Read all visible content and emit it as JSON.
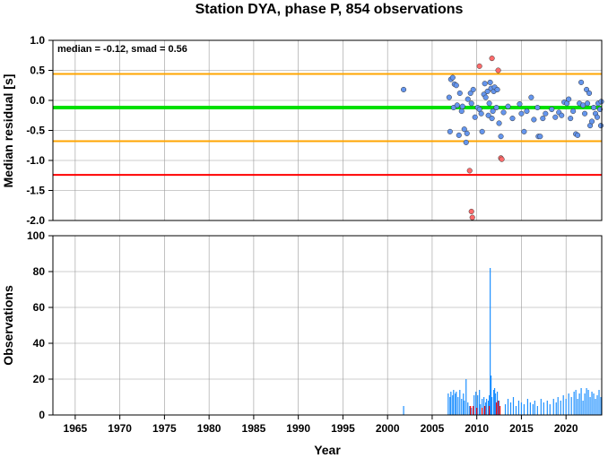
{
  "chart_data": [
    {
      "type": "scatter",
      "title": "Station DYA, phase P, 854 observations",
      "xlabel": "",
      "ylabel": "Median residual [s]",
      "annotation": "median = -0.12, smad = 0.56",
      "xlim": [
        1962.5,
        2024.0
      ],
      "ylim": [
        -2.0,
        1.0
      ],
      "yticks": [
        "1.0",
        "0.5",
        "0.0",
        "-0.5",
        "-1.0",
        "-1.5",
        "-2.0"
      ],
      "grid": true,
      "reference_lines": [
        {
          "value": 0.44,
          "color": "#ffa500"
        },
        {
          "value": -0.12,
          "color": "#00e000"
        },
        {
          "value": -0.68,
          "color": "#ffa500"
        },
        {
          "value": -1.24,
          "color": "#ff0000"
        }
      ],
      "series": [
        {
          "color": "#6495ed",
          "points": [
            [
              2001.8,
              0.18
            ],
            [
              2006.9,
              0.05
            ],
            [
              2007.0,
              -0.52
            ],
            [
              2007.1,
              0.35
            ],
            [
              2007.3,
              0.38
            ],
            [
              2007.4,
              -0.12
            ],
            [
              2007.5,
              0.27
            ],
            [
              2007.7,
              0.25
            ],
            [
              2007.8,
              -0.08
            ],
            [
              2008.0,
              -0.58
            ],
            [
              2008.1,
              0.12
            ],
            [
              2008.3,
              -0.18
            ],
            [
              2008.4,
              -0.1
            ],
            [
              2008.6,
              -0.48
            ],
            [
              2008.8,
              -0.7
            ],
            [
              2008.9,
              -0.55
            ],
            [
              2009.0,
              0.02
            ],
            [
              2009.3,
              0.12
            ],
            [
              2009.4,
              -0.05
            ],
            [
              2009.6,
              0.18
            ],
            [
              2009.8,
              -0.28
            ],
            [
              2010.1,
              -0.12
            ],
            [
              2010.3,
              -0.15
            ],
            [
              2010.5,
              -0.22
            ],
            [
              2010.6,
              -0.52
            ],
            [
              2010.8,
              0.1
            ],
            [
              2010.9,
              0.28
            ],
            [
              2011.0,
              0.05
            ],
            [
              2011.2,
              0.15
            ],
            [
              2011.3,
              -0.25
            ],
            [
              2011.4,
              -0.05
            ],
            [
              2011.5,
              0.3
            ],
            [
              2011.6,
              0.2
            ],
            [
              2011.7,
              -0.3
            ],
            [
              2011.8,
              -0.18
            ],
            [
              2011.9,
              0.15
            ],
            [
              2012.0,
              0.22
            ],
            [
              2012.2,
              -0.12
            ],
            [
              2012.3,
              0.18
            ],
            [
              2012.5,
              -0.38
            ],
            [
              2012.7,
              -0.6
            ],
            [
              2013.0,
              -0.2
            ],
            [
              2013.5,
              -0.1
            ],
            [
              2014.0,
              -0.3
            ],
            [
              2014.8,
              -0.06
            ],
            [
              2015.0,
              -0.22
            ],
            [
              2015.3,
              -0.52
            ],
            [
              2015.6,
              -0.18
            ],
            [
              2016.1,
              0.05
            ],
            [
              2016.4,
              -0.32
            ],
            [
              2016.8,
              -0.12
            ],
            [
              2016.9,
              -0.6
            ],
            [
              2017.1,
              -0.6
            ],
            [
              2017.4,
              -0.3
            ],
            [
              2017.7,
              -0.22
            ],
            [
              2018.4,
              -0.15
            ],
            [
              2018.8,
              -0.28
            ],
            [
              2019.2,
              -0.2
            ],
            [
              2019.5,
              -0.25
            ],
            [
              2019.8,
              -0.03
            ],
            [
              2020.1,
              -0.05
            ],
            [
              2020.3,
              0.02
            ],
            [
              2020.5,
              -0.3
            ],
            [
              2020.8,
              -0.18
            ],
            [
              2021.1,
              -0.56
            ],
            [
              2021.3,
              -0.58
            ],
            [
              2021.5,
              -0.05
            ],
            [
              2021.7,
              0.3
            ],
            [
              2021.9,
              -0.08
            ],
            [
              2022.1,
              -0.22
            ],
            [
              2022.3,
              0.18
            ],
            [
              2022.4,
              -0.05
            ],
            [
              2022.6,
              0.12
            ],
            [
              2022.7,
              -0.42
            ],
            [
              2022.9,
              -0.35
            ],
            [
              2023.1,
              -0.12
            ],
            [
              2023.3,
              -0.22
            ],
            [
              2023.5,
              -0.28
            ],
            [
              2023.6,
              -0.05
            ],
            [
              2023.8,
              -0.15
            ],
            [
              2023.9,
              -0.42
            ],
            [
              2023.95,
              -0.02
            ]
          ]
        },
        {
          "color": "#ff6b6b",
          "points": [
            [
              2009.2,
              -1.17
            ],
            [
              2009.4,
              -1.85
            ],
            [
              2009.5,
              -1.95
            ],
            [
              2010.3,
              0.57
            ],
            [
              2011.7,
              0.7
            ],
            [
              2012.4,
              0.5
            ],
            [
              2012.7,
              -0.96
            ],
            [
              2012.8,
              -0.98
            ]
          ]
        }
      ]
    },
    {
      "type": "bar",
      "xlabel": "Year",
      "ylabel": "Observations",
      "xlim": [
        1962.5,
        2024.0
      ],
      "ylim": [
        0,
        100
      ],
      "xticks": [
        "1965",
        "1970",
        "1975",
        "1980",
        "1985",
        "1990",
        "1995",
        "2000",
        "2005",
        "2010",
        "2015",
        "2020"
      ],
      "yticks": [
        "100",
        "80",
        "60",
        "40",
        "20",
        "0"
      ],
      "grid": true,
      "series": [
        {
          "color": "#1e90ff",
          "values": [
            [
              2001.8,
              5
            ],
            [
              2006.8,
              12
            ],
            [
              2007.0,
              10
            ],
            [
              2007.1,
              13
            ],
            [
              2007.3,
              11
            ],
            [
              2007.4,
              14
            ],
            [
              2007.6,
              12
            ],
            [
              2007.7,
              13
            ],
            [
              2007.9,
              10
            ],
            [
              2008.1,
              14
            ],
            [
              2008.3,
              9
            ],
            [
              2008.5,
              12
            ],
            [
              2008.6,
              8
            ],
            [
              2008.8,
              20
            ],
            [
              2009.0,
              7
            ],
            [
              2009.2,
              5
            ],
            [
              2009.4,
              4
            ],
            [
              2009.7,
              11
            ],
            [
              2009.9,
              13
            ],
            [
              2010.1,
              11
            ],
            [
              2010.3,
              14
            ],
            [
              2010.4,
              6
            ],
            [
              2010.6,
              9
            ],
            [
              2010.8,
              10
            ],
            [
              2011.0,
              7
            ],
            [
              2011.1,
              9
            ],
            [
              2011.3,
              8
            ],
            [
              2011.4,
              11
            ],
            [
              2011.5,
              82
            ],
            [
              2011.6,
              22
            ],
            [
              2011.7,
              10
            ],
            [
              2011.9,
              14
            ],
            [
              2012.0,
              15
            ],
            [
              2012.1,
              12
            ],
            [
              2012.3,
              13
            ],
            [
              2012.5,
              8
            ],
            [
              2013.2,
              6
            ],
            [
              2013.5,
              9
            ],
            [
              2013.8,
              7
            ],
            [
              2014.1,
              10
            ],
            [
              2014.4,
              5
            ],
            [
              2014.7,
              8
            ],
            [
              2015.0,
              7
            ],
            [
              2015.3,
              6
            ],
            [
              2015.7,
              9
            ],
            [
              2016.0,
              7
            ],
            [
              2016.3,
              6
            ],
            [
              2016.5,
              8
            ],
            [
              2016.8,
              5
            ],
            [
              2017.2,
              9
            ],
            [
              2017.5,
              7
            ],
            [
              2017.9,
              8
            ],
            [
              2018.2,
              6
            ],
            [
              2018.6,
              9
            ],
            [
              2018.9,
              7
            ],
            [
              2019.1,
              10
            ],
            [
              2019.4,
              8
            ],
            [
              2019.7,
              11
            ],
            [
              2020.0,
              9
            ],
            [
              2020.3,
              12
            ],
            [
              2020.6,
              10
            ],
            [
              2020.9,
              13
            ],
            [
              2021.1,
              14
            ],
            [
              2021.3,
              9
            ],
            [
              2021.5,
              12
            ],
            [
              2021.7,
              15
            ],
            [
              2021.9,
              8
            ],
            [
              2022.1,
              12
            ],
            [
              2022.3,
              15
            ],
            [
              2022.5,
              14
            ],
            [
              2022.7,
              10
            ],
            [
              2022.9,
              13
            ],
            [
              2023.1,
              12
            ],
            [
              2023.3,
              9
            ],
            [
              2023.5,
              11
            ],
            [
              2023.7,
              14
            ],
            [
              2023.9,
              10
            ]
          ]
        },
        {
          "color": "#ff0000",
          "values": [
            [
              2009.3,
              5
            ],
            [
              2009.6,
              5
            ],
            [
              2010.0,
              4
            ],
            [
              2010.6,
              4
            ],
            [
              2010.9,
              5
            ],
            [
              2011.4,
              5
            ],
            [
              2012.2,
              7
            ],
            [
              2012.4,
              8
            ],
            [
              2012.6,
              5
            ]
          ]
        }
      ]
    }
  ]
}
